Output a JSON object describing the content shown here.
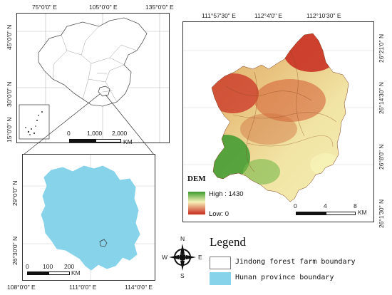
{
  "china_map": {
    "top_labels": [
      "75°0'0\" E",
      "105°0'0\" E",
      "135°0'0\" E"
    ],
    "left_labels": [
      "45°0'0\" N",
      "30°0'0\" N",
      "15°0'0\" N"
    ],
    "scale": {
      "ticks": [
        "0",
        "1,000",
        "2,000"
      ],
      "unit": "KM"
    }
  },
  "hunan_map": {
    "bottom_labels": [
      "108°0'0\" E",
      "111°0'0\" E",
      "114°0'0\" E"
    ],
    "left_labels": [
      "29°0'0\" N",
      "26°30'0\" N"
    ],
    "scale": {
      "ticks": [
        "0",
        "100",
        "200"
      ],
      "unit": "KM"
    }
  },
  "dem_map": {
    "top_labels": [
      "111°57'30\" E",
      "112°4'0\" E",
      "112°10'30\" E"
    ],
    "right_labels": [
      "26°21'0\" N",
      "26°14'30\" N",
      "26°8'0\" N",
      "26°1'30\" N"
    ],
    "legend": {
      "title": "DEM",
      "high": "High : 1430",
      "low": "Low: 0"
    },
    "scale": {
      "ticks": [
        "0",
        "4",
        "8"
      ],
      "unit": "KM"
    }
  },
  "compass": {
    "n": "N",
    "s": "S",
    "e": "E",
    "w": "W"
  },
  "legend": {
    "title": "Legend",
    "items": [
      {
        "label": "Jindong forest farm boundary",
        "fill": "#ffffff",
        "border": "#777777"
      },
      {
        "label": "Hunan province boundary",
        "fill": "#87d3ea",
        "border": "#87d3ea"
      }
    ]
  },
  "colors": {
    "hunan": "#87d3ea",
    "dem_high": "#c8281e",
    "dem_mid": "#f6f2b8",
    "dem_low": "#3c9a2e"
  }
}
